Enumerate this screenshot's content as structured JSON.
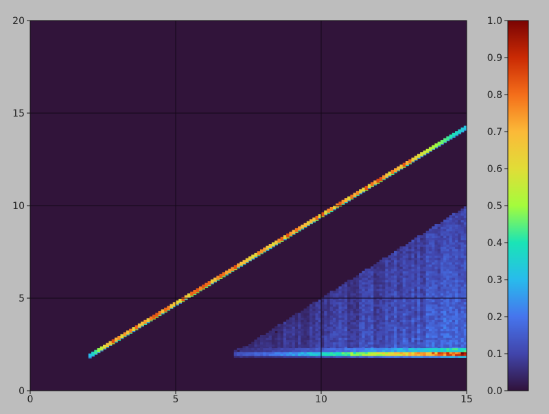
{
  "chart_data": {
    "type": "heatmap",
    "title": "",
    "xlabel": "",
    "ylabel": "",
    "xlim": [
      0,
      15
    ],
    "ylim": [
      0,
      20
    ],
    "x_ticks": [
      "0",
      "5",
      "10",
      "15"
    ],
    "y_ticks": [
      "0",
      "5",
      "10",
      "15",
      "20"
    ],
    "grid": true,
    "colormap": "turbo",
    "colorbar": {
      "range": [
        0.0,
        1.0
      ],
      "ticks": [
        "0.0",
        "0.1",
        "0.2",
        "0.3",
        "0.4",
        "0.5",
        "0.6",
        "0.7",
        "0.8",
        "0.9",
        "1.0"
      ],
      "placement": "right"
    },
    "background_color": "#31143a",
    "features": [
      {
        "name": "diagonal line",
        "x_range": [
          2,
          15
        ],
        "y_at_x_start": 1.9,
        "y_at_x_end": 14.3,
        "intensity_range": [
          0.3,
          0.85
        ]
      },
      {
        "name": "wedge",
        "x_range": [
          7,
          15
        ],
        "y_bottom": 1.8,
        "y_top_at_x_start": 2.0,
        "y_top_at_x_end": 10.0,
        "intensity_range": [
          0.05,
          0.25
        ]
      },
      {
        "name": "bottom band",
        "x_range": [
          7,
          15
        ],
        "y_range": [
          1.8,
          2.2
        ],
        "intensity_range": [
          0.1,
          0.9
        ]
      }
    ]
  }
}
